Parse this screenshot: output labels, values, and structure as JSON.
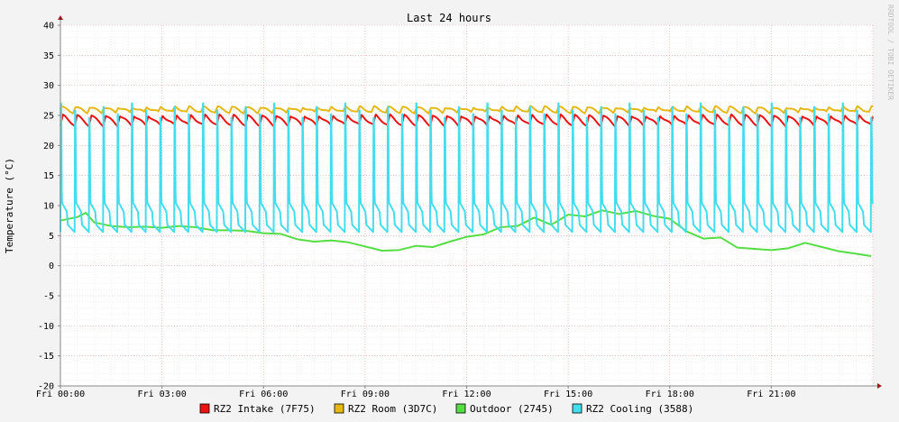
{
  "chart_data": {
    "type": "line",
    "title": "Last 24 hours",
    "ylabel": "Temperature (°C)",
    "watermark": "RRDTOOL / TOBI OETIKER",
    "ylim": [
      -20,
      40
    ],
    "xlim_hours": [
      0,
      24
    ],
    "y_ticks": [
      "40",
      "35",
      "30",
      "25",
      "20",
      "15",
      "10",
      "5",
      "0",
      "-5",
      "-10",
      "-15",
      "-20"
    ],
    "x_tick_labels": [
      "Fri 00:00",
      "Fri 03:00",
      "Fri 06:00",
      "Fri 09:00",
      "Fri 12:00",
      "Fri 15:00",
      "Fri 18:00",
      "Fri 21:00"
    ],
    "grid": true,
    "legend_position": "bottom",
    "colors": {
      "background": "#f3f3f3",
      "plot": "#ffffff",
      "grid_minor": "#e6e6e6",
      "grid_major": "#e6a0a0",
      "axis": "#888888",
      "arrow": "#9b1c1c"
    },
    "series": [
      {
        "name": "RZ2 Intake (7F75)",
        "color": "#ee1111",
        "pattern": {
          "kind": "sawtooth",
          "cycle_hours": 0.42,
          "low": 23.3,
          "high": 25.0,
          "phase": 0.0
        }
      },
      {
        "name": "RZ2 Room (3D7C)",
        "color": "#e5b814",
        "pattern": {
          "kind": "sawtooth",
          "cycle_hours": 0.42,
          "low": 25.5,
          "high": 26.4,
          "phase": 0.12
        }
      },
      {
        "name": "Outdoor (2745)",
        "color": "#55dd44",
        "x": [
          0.0,
          0.5,
          0.75,
          1.0,
          1.5,
          2.0,
          2.5,
          3.0,
          3.5,
          4.0,
          4.5,
          5.0,
          5.5,
          6.0,
          6.5,
          7.0,
          7.5,
          8.0,
          8.5,
          9.0,
          9.5,
          10.0,
          10.5,
          11.0,
          11.5,
          12.0,
          12.5,
          13.0,
          13.5,
          14.0,
          14.5,
          15.0,
          15.5,
          16.0,
          16.5,
          17.0,
          17.5,
          18.0,
          18.5,
          19.0,
          19.5,
          20.0,
          20.5,
          21.0,
          21.5,
          22.0,
          22.5,
          23.0,
          23.5,
          23.95
        ],
        "values": [
          7.5,
          8.1,
          8.8,
          7.2,
          6.6,
          6.4,
          6.5,
          6.3,
          6.6,
          6.4,
          5.9,
          5.9,
          5.8,
          5.4,
          5.3,
          4.4,
          4.0,
          4.2,
          3.9,
          3.2,
          2.5,
          2.6,
          3.3,
          3.1,
          4.0,
          4.8,
          5.2,
          6.4,
          6.6,
          8.0,
          6.8,
          8.5,
          8.2,
          9.2,
          8.6,
          9.1,
          8.3,
          7.8,
          5.7,
          4.5,
          4.7,
          3.0,
          2.8,
          2.6,
          2.9,
          3.8,
          3.1,
          2.4,
          2.0,
          1.6
        ]
      },
      {
        "name": "RZ2 Cooling (3588)",
        "color": "#44ddee",
        "pattern": {
          "kind": "cooling_cycle",
          "cycle_hours": 0.42,
          "base_low": 5.6,
          "peak": 27.0,
          "plateau": 10.5
        }
      }
    ]
  }
}
